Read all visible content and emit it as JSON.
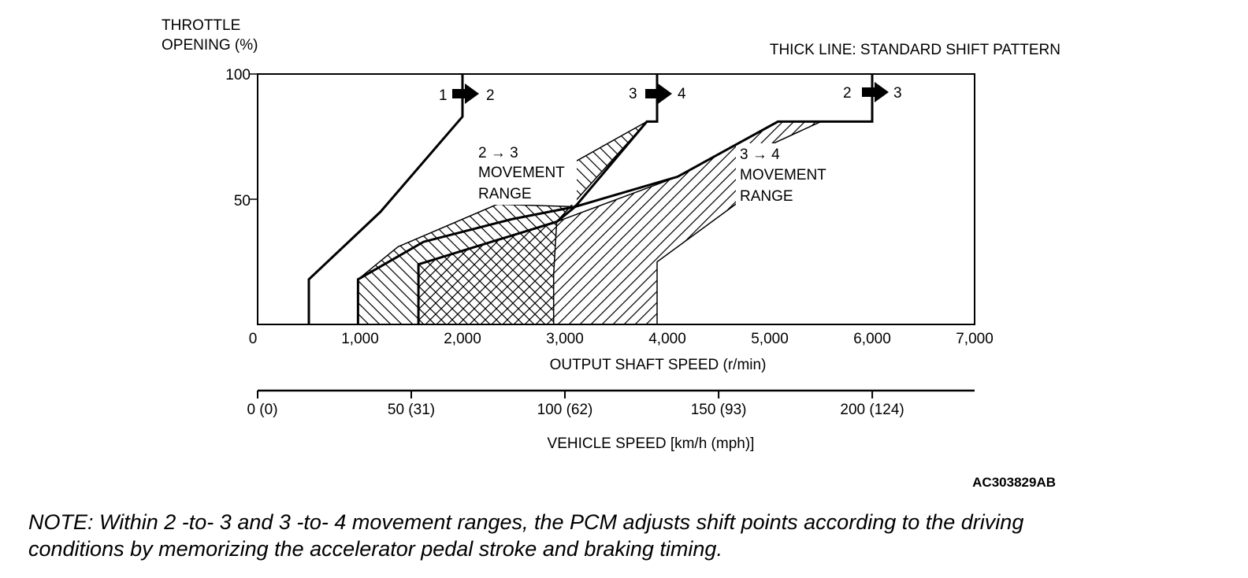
{
  "chart_data": {
    "type": "line",
    "title": "",
    "note_top_right": "THICK LINE: STANDARD SHIFT PATTERN",
    "ylabel": [
      "THROTTLE",
      "OPENING (%)"
    ],
    "xlabel": "OUTPUT SHAFT SPEED (r/min)",
    "x2label": "VEHICLE SPEED [km/h (mph)]",
    "xlim": [
      0,
      7000
    ],
    "ylim": [
      0,
      100
    ],
    "x_ticks": [
      "0",
      "1,000",
      "2,000",
      "3,000",
      "4,000",
      "5,000",
      "6,000",
      "7,000"
    ],
    "y_ticks": [
      "100",
      "50"
    ],
    "x2_ticks": [
      {
        "label": "0 (0)",
        "kmh": 0
      },
      {
        "label": "50 (31)",
        "kmh": 50
      },
      {
        "label": "100 (62)",
        "kmh": 100
      },
      {
        "label": "150 (93)",
        "kmh": 150
      },
      {
        "label": "200 (124)",
        "kmh": 200
      }
    ],
    "kmh_per_rpm": 0.03333,
    "series": [
      {
        "name": "1 → 2",
        "from": "1",
        "to": "2",
        "points": [
          [
            500,
            0
          ],
          [
            500,
            18
          ],
          [
            1200,
            45
          ],
          [
            2000,
            83
          ],
          [
            2000,
            100
          ]
        ]
      },
      {
        "name": "2 → 3",
        "from": "2",
        "to": "3",
        "points": [
          [
            980,
            0
          ],
          [
            980,
            18
          ],
          [
            1620,
            33
          ],
          [
            2480,
            42
          ],
          [
            3100,
            47
          ],
          [
            4100,
            59
          ],
          [
            5080,
            81
          ],
          [
            6000,
            81
          ],
          [
            6000,
            100
          ]
        ]
      },
      {
        "name": "3 → 4",
        "from": "3",
        "to": "4",
        "points": [
          [
            1570,
            0
          ],
          [
            1570,
            24
          ],
          [
            2920,
            41
          ],
          [
            3100,
            47
          ],
          [
            3800,
            81
          ],
          [
            3900,
            81
          ],
          [
            3900,
            100
          ]
        ]
      }
    ],
    "ranges": [
      {
        "label": [
          "2 → 3",
          "MOVEMENT",
          "RANGE"
        ],
        "boundary": [
          [
            980,
            0
          ],
          [
            980,
            18
          ],
          [
            1370,
            31
          ],
          [
            2340,
            48
          ],
          [
            3100,
            47
          ],
          [
            3100,
            65
          ],
          [
            3800,
            81
          ],
          [
            2920,
            41
          ],
          [
            2890,
            20
          ],
          [
            2890,
            0
          ]
        ]
      },
      {
        "label": [
          "3 → 4",
          "MOVEMENT",
          "RANGE"
        ],
        "boundary": [
          [
            1570,
            0
          ],
          [
            1570,
            24
          ],
          [
            2920,
            41
          ],
          [
            4100,
            59
          ],
          [
            5080,
            81
          ],
          [
            5500,
            81
          ],
          [
            4700,
            66
          ],
          [
            4700,
            49
          ],
          [
            3900,
            25
          ],
          [
            3900,
            0
          ]
        ]
      }
    ],
    "figure_code": "AC303829AB"
  },
  "note": {
    "line1": "NOTE: Within 2 -to- 3 and 3 -to- 4 movement ranges, the PCM adjusts shift points according to the driving",
    "line2": "conditions by memorizing the accelerator pedal stroke and braking timing."
  }
}
